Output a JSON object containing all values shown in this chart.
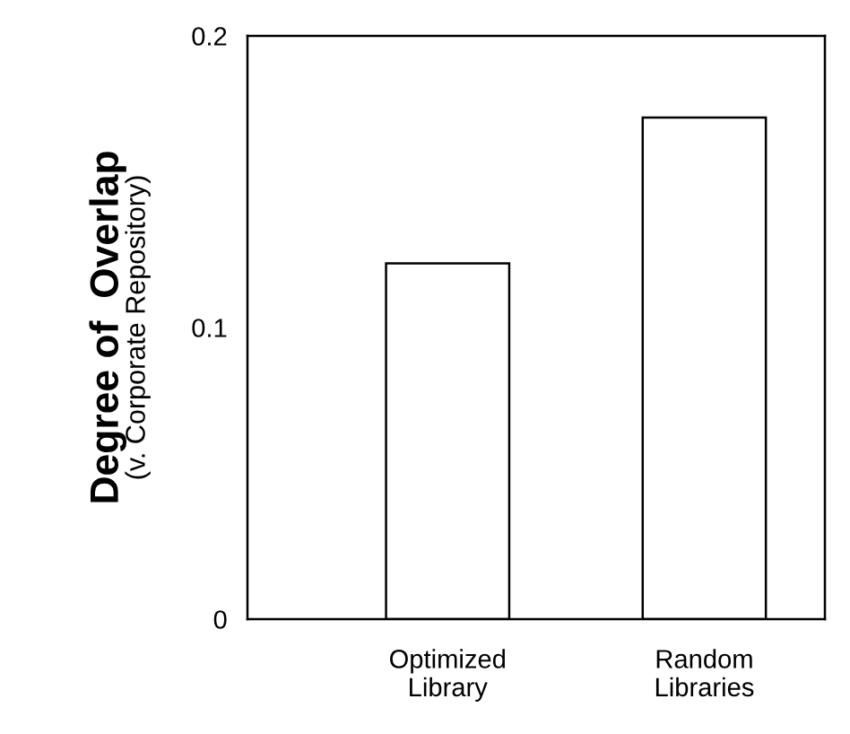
{
  "chart_data": {
    "type": "bar",
    "ylabel": "Degree of  Overlap",
    "annotations": [
      "(v. Corporate Repository)"
    ],
    "categories": [
      "Optimized\nLibrary",
      "Random\nLibraries"
    ],
    "values": [
      0.122,
      0.172
    ],
    "color": "#ffffff",
    "ylim": [
      0,
      0.2
    ],
    "yticks": [
      0,
      0.1,
      0.2
    ],
    "grid": false
  }
}
